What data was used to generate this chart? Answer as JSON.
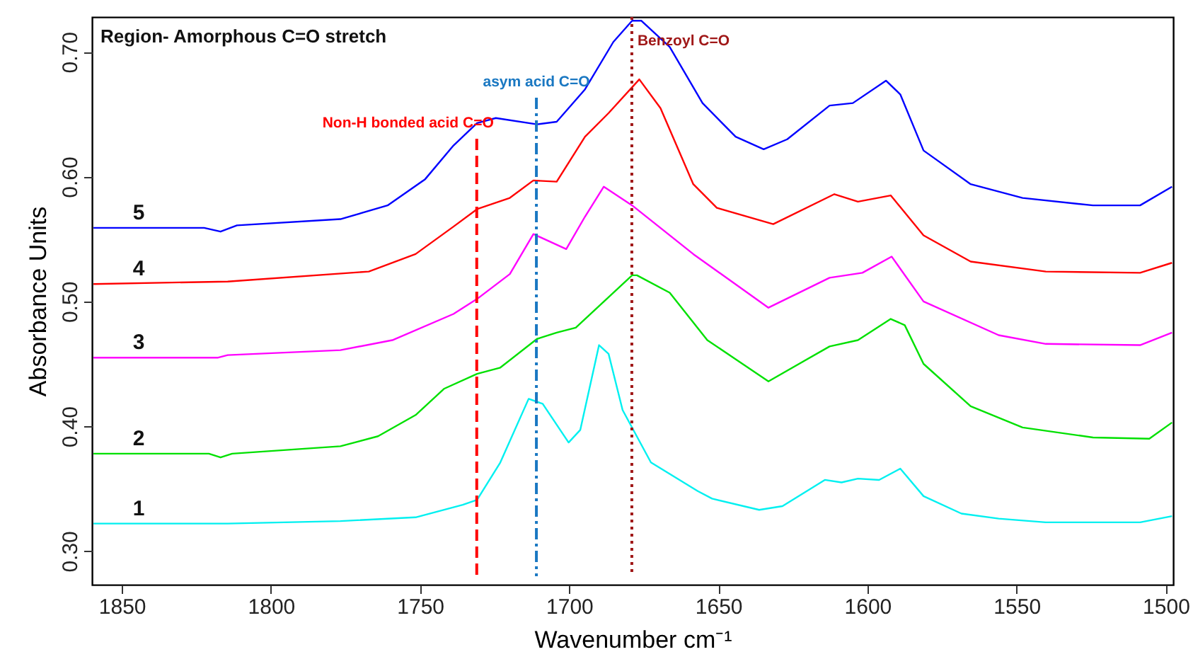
{
  "chart_data": {
    "type": "line",
    "title": "Region- Amorphous C=O stretch",
    "xlabel": "Wavenumber cm⁻¹",
    "ylabel": "Absorbance Units",
    "xlim": [
      1860,
      1497.5
    ],
    "xticks": [
      1850,
      1800,
      1750,
      1700,
      1650,
      1600,
      1550,
      1500
    ],
    "ylim": [
      0.273,
      0.728
    ],
    "yticks": [
      {
        "value": 0.3,
        "label": "0.30"
      },
      {
        "value": 0.4,
        "label": "0.40"
      },
      {
        "value": 0.5,
        "label": "0.50"
      },
      {
        "value": 0.6,
        "label": "0.60"
      },
      {
        "value": 0.7,
        "label": "0.70"
      }
    ],
    "grid": false,
    "marker": "none",
    "line_style": "solid",
    "series": [
      {
        "name": "5",
        "color": "#0000ff",
        "x": [
          1859.5,
          1822.4,
          1816.9,
          1811.4,
          1776.7,
          1760.9,
          1748.3,
          1738.8,
          1730.9,
          1724.6,
          1710.8,
          1704.2,
          1694.7,
          1685.2,
          1678.9,
          1675.8,
          1666.3,
          1655.3,
          1644.2,
          1634.8,
          1626.9,
          1612.7,
          1604.9,
          1593.8,
          1589.0,
          1581.2,
          1565.4,
          1548.0,
          1524.4,
          1508.6,
          1497.9
        ],
        "values": [
          0.559,
          0.559,
          0.556,
          0.561,
          0.566,
          0.577,
          0.598,
          0.625,
          0.643,
          0.647,
          0.642,
          0.644,
          0.67,
          0.708,
          0.725,
          0.725,
          0.704,
          0.659,
          0.632,
          0.622,
          0.63,
          0.657,
          0.659,
          0.677,
          0.666,
          0.621,
          0.594,
          0.583,
          0.577,
          0.577,
          0.592
        ]
      },
      {
        "name": "4",
        "color": "#ff0000",
        "x": [
          1859.5,
          1814.5,
          1767.2,
          1751.5,
          1738.8,
          1730.9,
          1719.9,
          1712.0,
          1704.2,
          1694.7,
          1686.8,
          1676.5,
          1669.4,
          1658.4,
          1650.5,
          1631.6,
          1611.1,
          1603.2,
          1592.2,
          1581.2,
          1565.4,
          1540.2,
          1508.6,
          1497.9
        ],
        "values": [
          0.514,
          0.516,
          0.524,
          0.538,
          0.56,
          0.574,
          0.583,
          0.597,
          0.596,
          0.632,
          0.651,
          0.678,
          0.655,
          0.594,
          0.575,
          0.562,
          0.586,
          0.58,
          0.585,
          0.553,
          0.532,
          0.524,
          0.523,
          0.531
        ]
      },
      {
        "name": "3",
        "color": "#ff00ff",
        "x": [
          1859.5,
          1817.7,
          1814.5,
          1776.7,
          1759.3,
          1738.8,
          1730.9,
          1719.9,
          1712.0,
          1701.0,
          1694.7,
          1688.4,
          1678.9,
          1658.4,
          1633.2,
          1612.7,
          1601.7,
          1591.9,
          1581.2,
          1556.0,
          1540.2,
          1508.6,
          1497.9
        ],
        "values": [
          0.455,
          0.455,
          0.457,
          0.461,
          0.469,
          0.49,
          0.502,
          0.522,
          0.554,
          0.542,
          0.568,
          0.592,
          0.577,
          0.538,
          0.495,
          0.519,
          0.523,
          0.536,
          0.5,
          0.473,
          0.466,
          0.465,
          0.475
        ]
      },
      {
        "name": "2",
        "color": "#00e000",
        "x": [
          1859.5,
          1820.8,
          1816.9,
          1813.0,
          1776.7,
          1764.1,
          1751.5,
          1742.0,
          1730.9,
          1723.1,
          1710.8,
          1704.2,
          1697.8,
          1678.9,
          1677.3,
          1666.3,
          1653.7,
          1633.2,
          1612.7,
          1603.2,
          1592.2,
          1587.5,
          1581.2,
          1565.4,
          1548.0,
          1524.4,
          1505.5,
          1497.9
        ],
        "values": [
          0.378,
          0.378,
          0.375,
          0.378,
          0.384,
          0.392,
          0.409,
          0.43,
          0.442,
          0.447,
          0.47,
          0.475,
          0.479,
          0.521,
          0.521,
          0.507,
          0.469,
          0.436,
          0.464,
          0.469,
          0.486,
          0.481,
          0.45,
          0.416,
          0.399,
          0.391,
          0.39,
          0.403
        ]
      },
      {
        "name": "1",
        "color": "#00f0f0",
        "x": [
          1859.5,
          1814.5,
          1776.7,
          1751.5,
          1735.7,
          1730.9,
          1723.1,
          1713.6,
          1708.9,
          1700.2,
          1696.3,
          1690.0,
          1686.8,
          1682.1,
          1672.6,
          1656.9,
          1652.1,
          1636.3,
          1628.5,
          1614.3,
          1608.7,
          1603.2,
          1596.1,
          1589.0,
          1581.2,
          1568.5,
          1556.0,
          1540.2,
          1508.6,
          1497.9
        ],
        "values": [
          0.322,
          0.322,
          0.324,
          0.327,
          0.337,
          0.341,
          0.371,
          0.422,
          0.418,
          0.387,
          0.397,
          0.465,
          0.458,
          0.413,
          0.371,
          0.348,
          0.342,
          0.333,
          0.336,
          0.357,
          0.355,
          0.358,
          0.357,
          0.366,
          0.344,
          0.33,
          0.326,
          0.323,
          0.323,
          0.328
        ]
      }
    ],
    "ref_lines": [
      {
        "axis": "x",
        "value": 1731,
        "label": "Non-H bonded acid C=O",
        "color": "#ff0000",
        "line_style": "dashed"
      },
      {
        "axis": "x",
        "value": 1711,
        "label": "asym acid C=O",
        "color": "#1a78c2",
        "line_style": "dashdot"
      },
      {
        "axis": "x",
        "value": 1679,
        "label": "Benzoyl C=O",
        "color": "#a01818",
        "line_style": "dotted"
      }
    ]
  }
}
